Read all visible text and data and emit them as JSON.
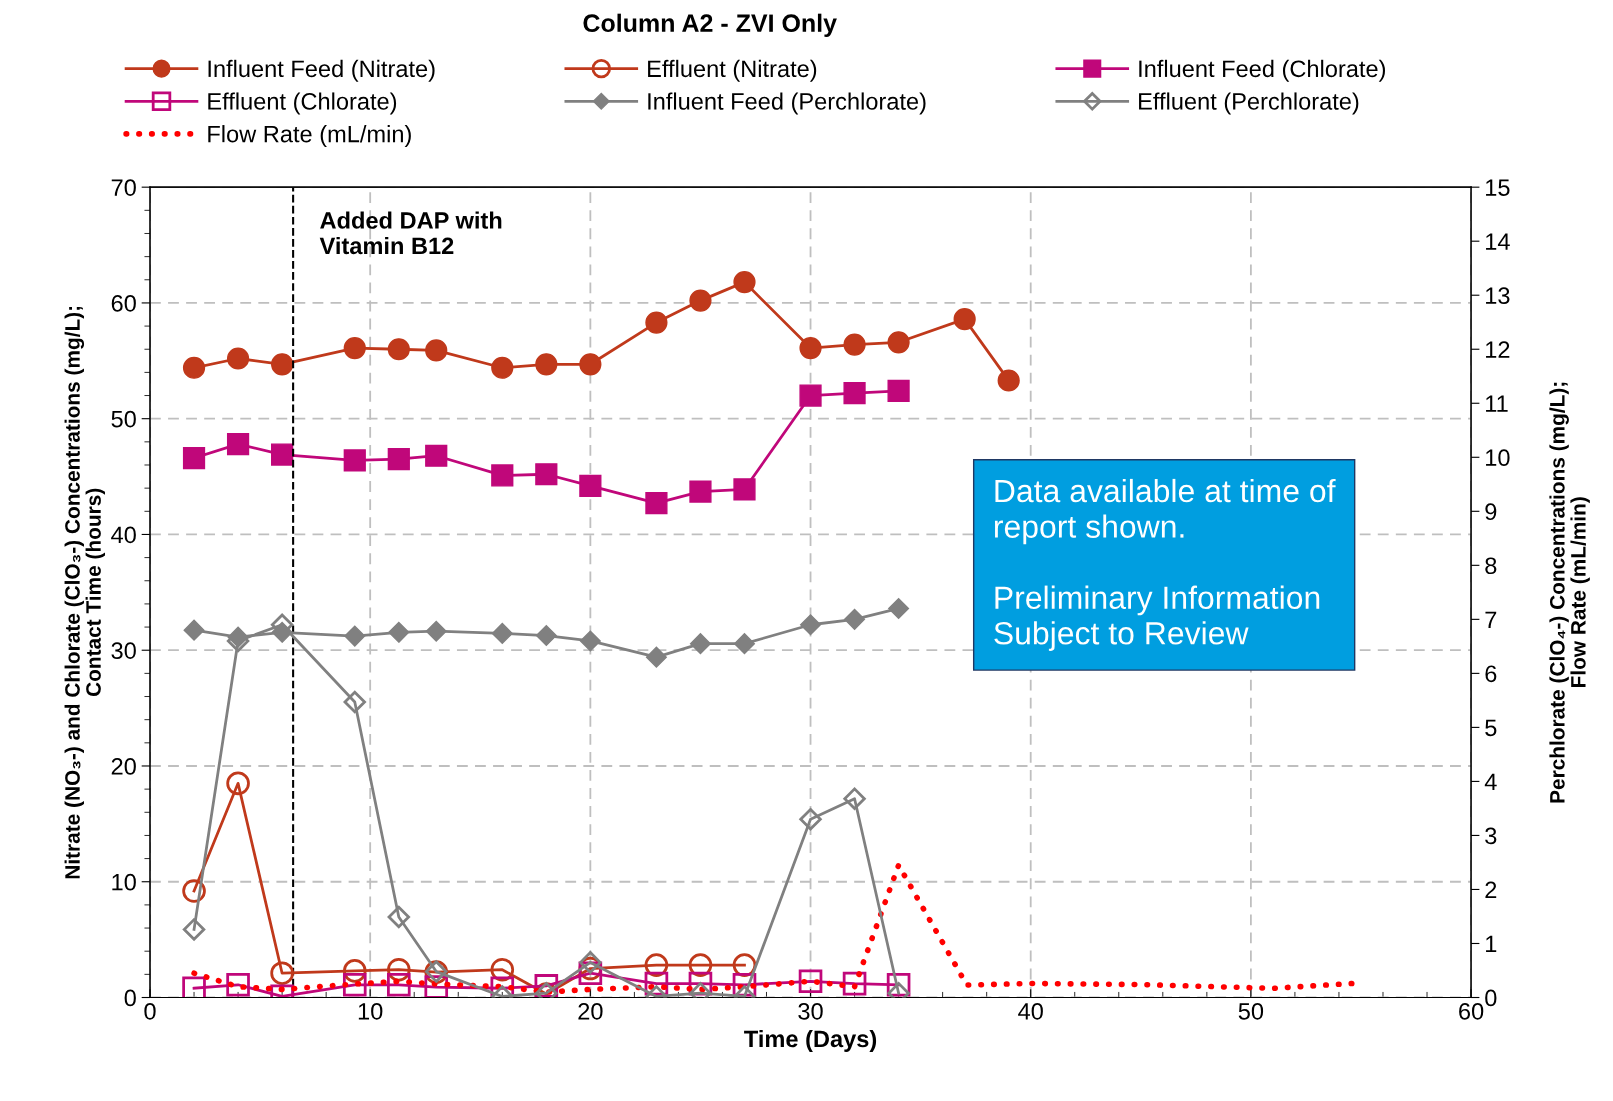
{
  "chart_data": {
    "type": "line",
    "title": "Column A2 - ZVI Only",
    "xlabel": "Time (Days)",
    "ylabel": "Nitrate (NO₃-) and Chlorate (ClO₃-) Concentrations (mg/L);\nContact Time (hours)",
    "y2label": "Perchlorate (ClO₄-) Concentrations (mg/L);\nFlow Rate (mL/min)",
    "xlim": [
      0,
      60
    ],
    "xticks": [
      0,
      10,
      20,
      30,
      40,
      50,
      60
    ],
    "ylim": [
      0,
      70
    ],
    "yticks": [
      0,
      10,
      20,
      30,
      40,
      50,
      60,
      70
    ],
    "y2lim": [
      0,
      15
    ],
    "y2ticks": [
      0,
      1,
      2,
      3,
      4,
      5,
      6,
      7,
      8,
      9,
      10,
      11,
      12,
      13,
      14,
      15
    ],
    "grid": true,
    "legend": "top",
    "series": [
      {
        "name": "Influent Feed (Nitrate)",
        "color": "#c0391b",
        "marker": "circle",
        "x": [
          2,
          4,
          6,
          9.3,
          11.3,
          13,
          16,
          18,
          20,
          23,
          25,
          27,
          30,
          32,
          34,
          37,
          39
        ],
        "values": [
          54.4,
          55.2,
          54.7,
          56.1,
          56.0,
          55.9,
          54.4,
          54.7,
          54.7,
          58.3,
          60.2,
          61.8,
          56.1,
          56.4,
          56.6,
          58.6,
          53.3
        ]
      },
      {
        "name": "Effluent (Nitrate)",
        "color": "#c0391b",
        "marker": "circle",
        "x": [
          2,
          4,
          6,
          9.3,
          11.3,
          13,
          16,
          18,
          20,
          23,
          25,
          27
        ],
        "values": [
          9.2,
          18.5,
          2.1,
          2.3,
          2.4,
          2.2,
          2.4,
          0.3,
          2.5,
          2.8,
          2.8,
          2.8
        ]
      },
      {
        "name": "Influent Feed (Chlorate)",
        "color": "#c0077a",
        "marker": "square",
        "x": [
          2,
          4,
          6,
          9.3,
          11.3,
          13,
          16,
          18,
          20,
          23,
          25,
          27,
          30,
          32,
          34
        ],
        "values": [
          46.6,
          47.8,
          46.9,
          46.4,
          46.5,
          46.8,
          45.1,
          45.2,
          44.2,
          42.7,
          43.7,
          43.9,
          52.0,
          52.2,
          52.4
        ]
      },
      {
        "name": "Effluent (Chlorate)",
        "color": "#c0077a",
        "marker": "square",
        "x": [
          2,
          4,
          6,
          9.3,
          11.3,
          13,
          16,
          18,
          20,
          23,
          25,
          27,
          30,
          32,
          34
        ],
        "values": [
          0.8,
          1.1,
          0.1,
          1.1,
          1.1,
          0.9,
          0.8,
          1.0,
          2.1,
          1.2,
          1.2,
          1.1,
          1.4,
          1.2,
          1.1
        ]
      },
      {
        "name": "Influent Feed (Perchlorate)",
        "color": "#808080",
        "marker": "diamond",
        "axis": "y2",
        "x": [
          2,
          4,
          6,
          9.3,
          11.3,
          13,
          16,
          18,
          20,
          23,
          25,
          27,
          30,
          32,
          34
        ],
        "values": [
          6.8,
          6.67,
          6.76,
          6.69,
          6.76,
          6.78,
          6.74,
          6.7,
          6.6,
          6.3,
          6.55,
          6.55,
          6.9,
          7.0,
          7.2
        ]
      },
      {
        "name": "Effluent (Perchlorate)",
        "color": "#808080",
        "marker": "diamond",
        "axis": "y2",
        "x": [
          2,
          4,
          6,
          9.3,
          11.3,
          13,
          16,
          18,
          20,
          23,
          25,
          27,
          30,
          32,
          34
        ],
        "values": [
          1.26,
          6.6,
          6.9,
          5.47,
          1.49,
          0.48,
          0.02,
          0.08,
          0.65,
          0.02,
          0.08,
          0.02,
          3.3,
          3.68,
          0.08
        ]
      },
      {
        "name": "Flow Rate (mL/min)",
        "color": "#ff0000",
        "marker": "none",
        "line_style": "dotted",
        "axis": "y2",
        "x": [
          2,
          4,
          6,
          9.3,
          11.3,
          13,
          16,
          18,
          20,
          23,
          25,
          27,
          30,
          32,
          34,
          37.1,
          40,
          45,
          51,
          55
        ],
        "values": [
          0.45,
          0.2,
          0.15,
          0.25,
          0.3,
          0.25,
          0.2,
          0.1,
          0.15,
          0.2,
          0.15,
          0.2,
          0.3,
          0.2,
          2.45,
          0.23,
          0.26,
          0.24,
          0.17,
          0.27
        ]
      }
    ],
    "ref_lines": [
      {
        "axis": "x",
        "value": 6.5,
        "label": "Added DAP with\nVitamin B12",
        "color": "#000000",
        "line_style": "dashed"
      }
    ],
    "annotations": [
      "Data available at time of\nreport shown.\n\nPreliminary Information\nSubject to Review"
    ]
  }
}
